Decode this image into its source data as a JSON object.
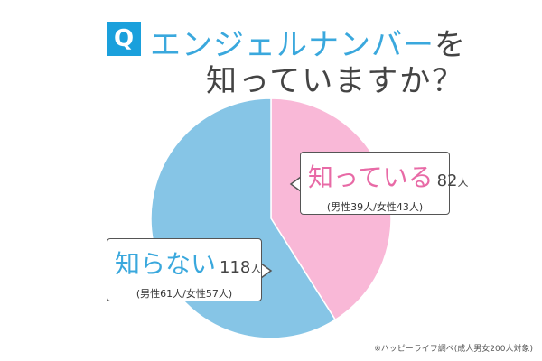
{
  "title": {
    "q_badge": "Q",
    "line1_main": "エンジェルナンバー",
    "line1_tail": "を",
    "line2": "知っていますか？"
  },
  "chart_data": {
    "type": "pie",
    "slices": [
      {
        "label": "知っている",
        "value": 82,
        "unit": "人",
        "detail": "(男性39人/女性43人)",
        "color": "#f9b8d7"
      },
      {
        "label": "知らない",
        "value": 118,
        "unit": "人",
        "detail": "(男性61人/女性57人)",
        "color": "#86c5e6"
      }
    ]
  },
  "footnote": "※ハッピーライフ調べ(成人男女200人対象)"
}
